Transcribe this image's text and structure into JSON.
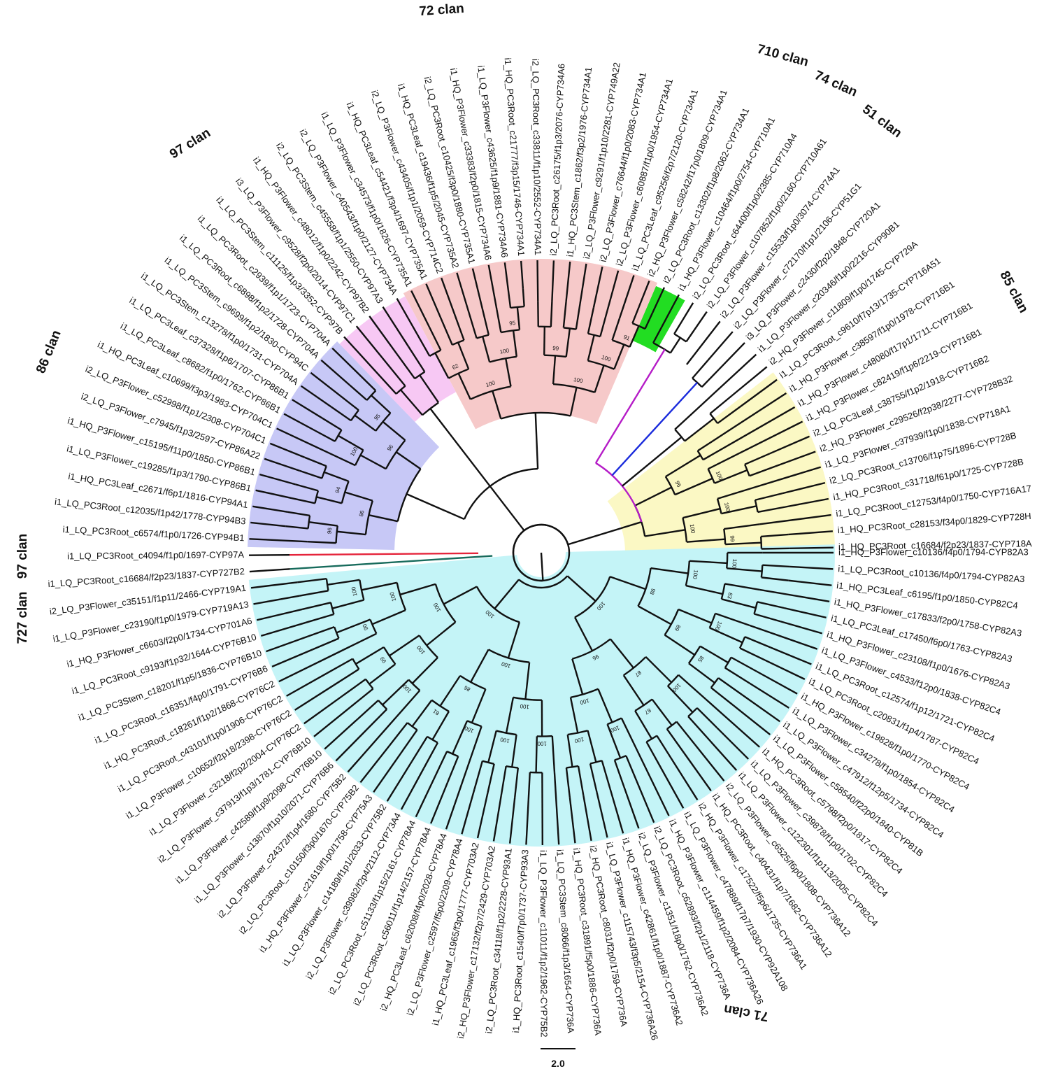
{
  "leaves": [
    "i1_HQ_PC3Root_c16684/f2p23/1837-CYP718A",
    "i1_HQ_PC3Root_c28153/f34p0/1829-CYP728H",
    "i1_LQ_PC3Root_c12753/f4p0/1750-CYP716A17",
    "i1_HQ_PC3Root_c31718/f61p0/1725-CYP728B",
    "i2_LQ_PC3Root_c13706/f1p75/1896-CYP728B",
    "i1_LQ_P3Flower_c37939/f1p0/1838-CYP718A1",
    "i2_HQ_P3Flower_c29526/f2p38/2277-CYP728B32",
    "i2_LQ_PC3Leaf_c38755/f1p2/1918-CYP716B2",
    "i1_HQ_P3Flower_c82419/f1p6/2219-CYP716B1",
    "i1_HQ_P3Flower_c48080/f17p1/1711-CYP716B1",
    "i1_HQ_P3Flower_c38597/f1p0/1978-CYP716B1",
    "i1_LQ_PC3Root_c9610/f7p13/1735-CYP716A51",
    "i2_HQ_P3Flower_c11809/f1p0/1745-CYP729A",
    "i1_LQ_P3Flower_c20346/f1p0/2216-CYP90B1",
    "i3_LQ_P3Flower_c2430/f2p2/1848-CYP720A1",
    "i2_LQ_P3Flower_c72170/f1p1/2106-CYP51G1",
    "i2_LQ_P3Flower_c15533/f1p0/3074-CYP74A1",
    "i2_LQ_P3Flower_c107852/f1p0/2160-CYP710A61",
    "i2_LQ_PC3Root_c64400/f1p0/2385-CYP710A4",
    "i1_HQ_P3Flower_c10464/f1p0/2754-CYP710A1",
    "i2_LQ_PC3Root_c13302/f1p8/2062-CYP734A1",
    "i2_HQ_P3Flower_c58242/f17p0/1809-CYP734A1",
    "i1_LQ_PC3Leaf_c95256/f2p7/2120-CYP734A1",
    "i2_LQ_P3Flower_c60887/f1p0/1954-CYP734A1",
    "i2_LQ_P3Flower_c76644/f1p0/2083-CYP734A1",
    "i2_LQ_P3Flower_c9291/f1p10/2281-CYP749A22",
    "i1_HQ_PC3Stem_c1862/f3p2/1976-CYP734A1",
    "i2_LQ_PC3Root_c26175/f1p3/2076-CYP734A6",
    "i2_LQ_PC3Root_c33811/f1p10/2552-CYP734A1",
    "i1_HQ_PC3Root_c21777/f3p15/1746-CYP734A1",
    "i1_LQ_P3Flower_c43625/f1p9/1881-CYP734A6",
    "i1_HQ_P3Flower_c33383/f2p0/1815-CYP734A6",
    "i2_LQ_PC3Root_c10425/f3p0/1880-CYP735A1",
    "i1_HQ_PC3Leaf_c19436/f1p5/2045-CYP735A2",
    "i2_LQ_P3Flower_c43405/f1p1/2059-CYP714C2",
    "i1_HQ_PC3Leaf_c54421/f3p4/1697-CYP735A1",
    "i1_LQ_P3Flower_c34573/f1p0/1826-CYP735A1",
    "i2_LQ_P3Flower_c40543/f1p0/2127-CYP734A",
    "i2_LQ_PC3Stem_c45558/f1p1/2550-CYP97A3",
    "i1_HQ_P3Flower_c48012/f1p0/2242-CYP97B2",
    "i3_LQ_P3Flower_c9528/f2p0/2014-CYP97C1",
    "i1_LQ_PC3Stem_c11125/f1p3/3352-CYP97B",
    "i1_LQ_PC3Root_c2939/f1p1/1723-CYP704A",
    "i1_LQ_PC3Root_c6898/f1p2/1728-CYP704A",
    "i1_LQ_PC3Stem_c9699/f1p2/1830-CYP94C",
    "i1_LQ_PC3Stem_c13278/f1p0/1731-CYP704A",
    "i1_LQ_PC3Leaf_c37328/f1p6/1707-CYP86B1",
    "i1_LQ_PC3Leaf_c8682/f1p0/1762-CYP86B1",
    "i1_HQ_PC3Leaf_c10699/f3p3/1983-CYP704C1",
    "i2_LQ_P3Flower_c52998/f1p1/2308-CYP704C1",
    "i2_LQ_P3Flower_c7945/f1p3/2597-CYP86A22",
    "i1_HQ_P3Flower_c15195/f11p0/1850-CYP86B1",
    "i1_LQ_P3Flower_c19285/f1p3/1790-CYP86B1",
    "i1_HQ_PC3Leaf_c2671/f6p1/1816-CYP94A1",
    "i1_LQ_PC3Root_c12035/f1p42/1778-CYP94B3",
    "i1_LQ_PC3Root_c6574/f1p0/1726-CYP94B1",
    "i1_LQ_PC3Root_c4094/f1p0/1697-CYP97A",
    "i1_LQ_PC3Root_c16684/f2p23/1837-CYP727B2",
    "i2_LQ_P3Flower_c35151/f1p11/2466-CYP719A1",
    "i1_LQ_P3Flower_c23190/f1p0/1979-CYP719A13",
    "i1_HQ_P3Flower_c6603/f2p0/1734-CYP701A6",
    "i1_LQ_PC3Root_c9193/f1p32/1644-CYP76B10",
    "i1_LQ_PC3Stem_c18201/f1p5/1836-CYP76B10",
    "i1_LQ_PC3Root_c16351/f4p0/1791-CYP76B6",
    "i1_HQ_PC3Root_c18261/f1p2/1868-CYP76C2",
    "i1_LQ_PC3Root_c43101/f1p0/1906-CYP76C2",
    "i1_LQ_P3Flower_c10652/f2p18/2398-CYP76C2",
    "i1_LQ_P3Flower_c3218/f2p2/2004-CYP76C2",
    "i2_LQ_P3Flower_c37913/f1p3/1781-CYP76B10",
    "i1_LQ_P3Flower_c42589/f1p9/2098-CYP76B10",
    "i1_LQ_P3Flower_c13870/f1p10/2071-CYP76B6",
    "i2_LQ_P3Flower_c24372/f1p4/1680-CYP75B2",
    "i2_LQ_PC3Root_c10150/f3p0/1670-CYP75B2",
    "i1_HQ_P3Flower_c21619/f1p0/1758-CYP75A3",
    "i1_LQ_P3Flower_c14189/f1p1/2033-CYP75B2",
    "i2_LQ_P3Flower_c39982/f2p4/2112-CYP73A4",
    "i2_LQ_PC3Root_c51133/f1p15/2161-CYP78A4",
    "i2_LQ_PC3Root_c56011/f1p14/2157-CYP78A4",
    "i2_HQ_PC3Leaf_c62008/f4p0/2028-CYP78A4",
    "i2_LQ_P3Flower_c2597/f5p0/2209-CYP78A4",
    "i1_HQ_PC3Leaf_c1965/f3p0/1777-CYP703A2",
    "i2_HQ_P3Flower_c17132/f2p7/2429-CYP703A2",
    "i2_LQ_PC3Root_c34118/f1p2/2228-CYP93A1",
    "i1_HQ_PC3Root_c1540/f7p0/1737-CYP93A3",
    "i1_LQ_P3Flower_c11011/f1p2/1962-CYP75B2",
    "i1_LQ_PC3Stem_c8066/f1p3/1654-CYP736A",
    "i1_HQ_PC3Root_c31891/f5p0/1886-CYP736A",
    "i2_HQ_PC3Root_c8031/f2p0/1759-CYP736A",
    "i1_LQ_P3Flower_c115743/f3p5/2154-CYP736A26",
    "i1_HQ_P3Flower_c42861/f1p0/1887-CYP736A2",
    "i2_LQ_P3Flower_c1351/f18p0/1762-CYP736A2",
    "i2_LQ_PC3Root_c62893/f2p1/2118-CYP736A",
    "i1_HQ_P3Flower_c114459/f1p2/2084-CYP736A26",
    "i1_LQ_P3Flower_c47889/f17p7/1930-CYP92A108",
    "i2_HQ_P3Flower_c17522/f5p6/1735-CYP736A1",
    "i1_HQ_PC3Root_c40431/f1p7/1682-CYP736A12",
    "i2_LQ_P3Flower_c6525/f6p0/1808-CYP736A12",
    "i1_LQ_P3Flower_c122301/f1p113/2005-CYP82C4",
    "i1_LQ_P3Flower_c39878/f1p0/1702-CYP82C4",
    "i1_HQ_PC3Root_c5798/f2p0/1817-CYP82C4",
    "i1_LQ_P3Flower_c58540/f22p0/1840-CYP81B",
    "i1_LQ_P3Flower_c47912/f12p5/1734-CYP82C4",
    "i1_LQ_P3Flower_c34278/f1p0/1854-CYP82C4",
    "i1_HQ_P3Flower_c19828/f1p0/1770-CYP82C4",
    "i1_LQ_PC3Root_c20831/f1p4/1787-CYP82C4",
    "i1_LQ_PC3Root_c12574/f1p12/1721-CYP82C4",
    "i1_LQ_P3Flower_c4533/f12p0/1838-CYP82C4",
    "i1_HQ_P3Flower_c23108/f1p0/1676-CYP82A3",
    "i1_LQ_PC3Leaf_c17450/f6p0/1763-CYP82A3",
    "i1_HQ_P3Flower_c17833/f2p0/1758-CYP82A3",
    "i1_HQ_PC3Leaf_c6195/f1p0/1850-CYP82C4",
    "i1_LQ_PC3Root_c10136/f4p0/1794-CYP82A3",
    "i1_HQ_P3Flower_c10136/f4p0/1794-CYP82A3"
  ],
  "clans": {
    "c85": "85 clan",
    "c51": "51 clan",
    "c74": "74 clan",
    "c710": "710 clan",
    "c72": "72 clan",
    "c97a": "97 clan",
    "c86": "86 clan",
    "c97b": "97 clan",
    "c727": "727 clan",
    "c71": "71 clan"
  },
  "bootstrap": {
    "b99a": "99",
    "b100a": "100",
    "b100b": "100",
    "b100c": "100",
    "b95a": "95",
    "b91": "91",
    "b100d": "100",
    "b99b": "99",
    "b100e": "100",
    "b95b": "95",
    "b100f": "100",
    "b62": "62",
    "b100g": "100",
    "b95c": "95",
    "b100h": "100",
    "b96a": "96",
    "b94": "94",
    "b96b": "96",
    "b86a": "86",
    "b100i": "100",
    "b90": "90",
    "b100j": "100",
    "b99c": "99",
    "b100k": "100",
    "b100l": "100",
    "b100m": "100",
    "b81": "81",
    "b100n": "100",
    "b86b": "86",
    "b100o": "100",
    "b100p": "100",
    "b100q": "100",
    "b100r": "100",
    "b100s": "100",
    "b100t": "100",
    "b100u": "100",
    "b100v": "100",
    "b87a": "87",
    "b100w": "100",
    "b87b": "87",
    "b96c": "96",
    "b85": "85",
    "b100x": "100",
    "b89": "89",
    "b83a": "83",
    "b100y": "100",
    "b100z": "100",
    "b98": "98",
    "b100aa": "100",
    "b83b": "83"
  },
  "scale_label": "2.0",
  "colors": {
    "clade_85": "#fbf8c4",
    "clade_51": "#22dd22",
    "clade_72": "#f6c9c9",
    "clade_97": "#f7c8f4",
    "clade_86": "#c7c8f6",
    "clade_71": "#c4f4f7",
    "branch_74": "#1a2bdc",
    "branch_710": "#b51cc7",
    "branch_97": "#e5243b",
    "branch_727": "#176b5c"
  }
}
